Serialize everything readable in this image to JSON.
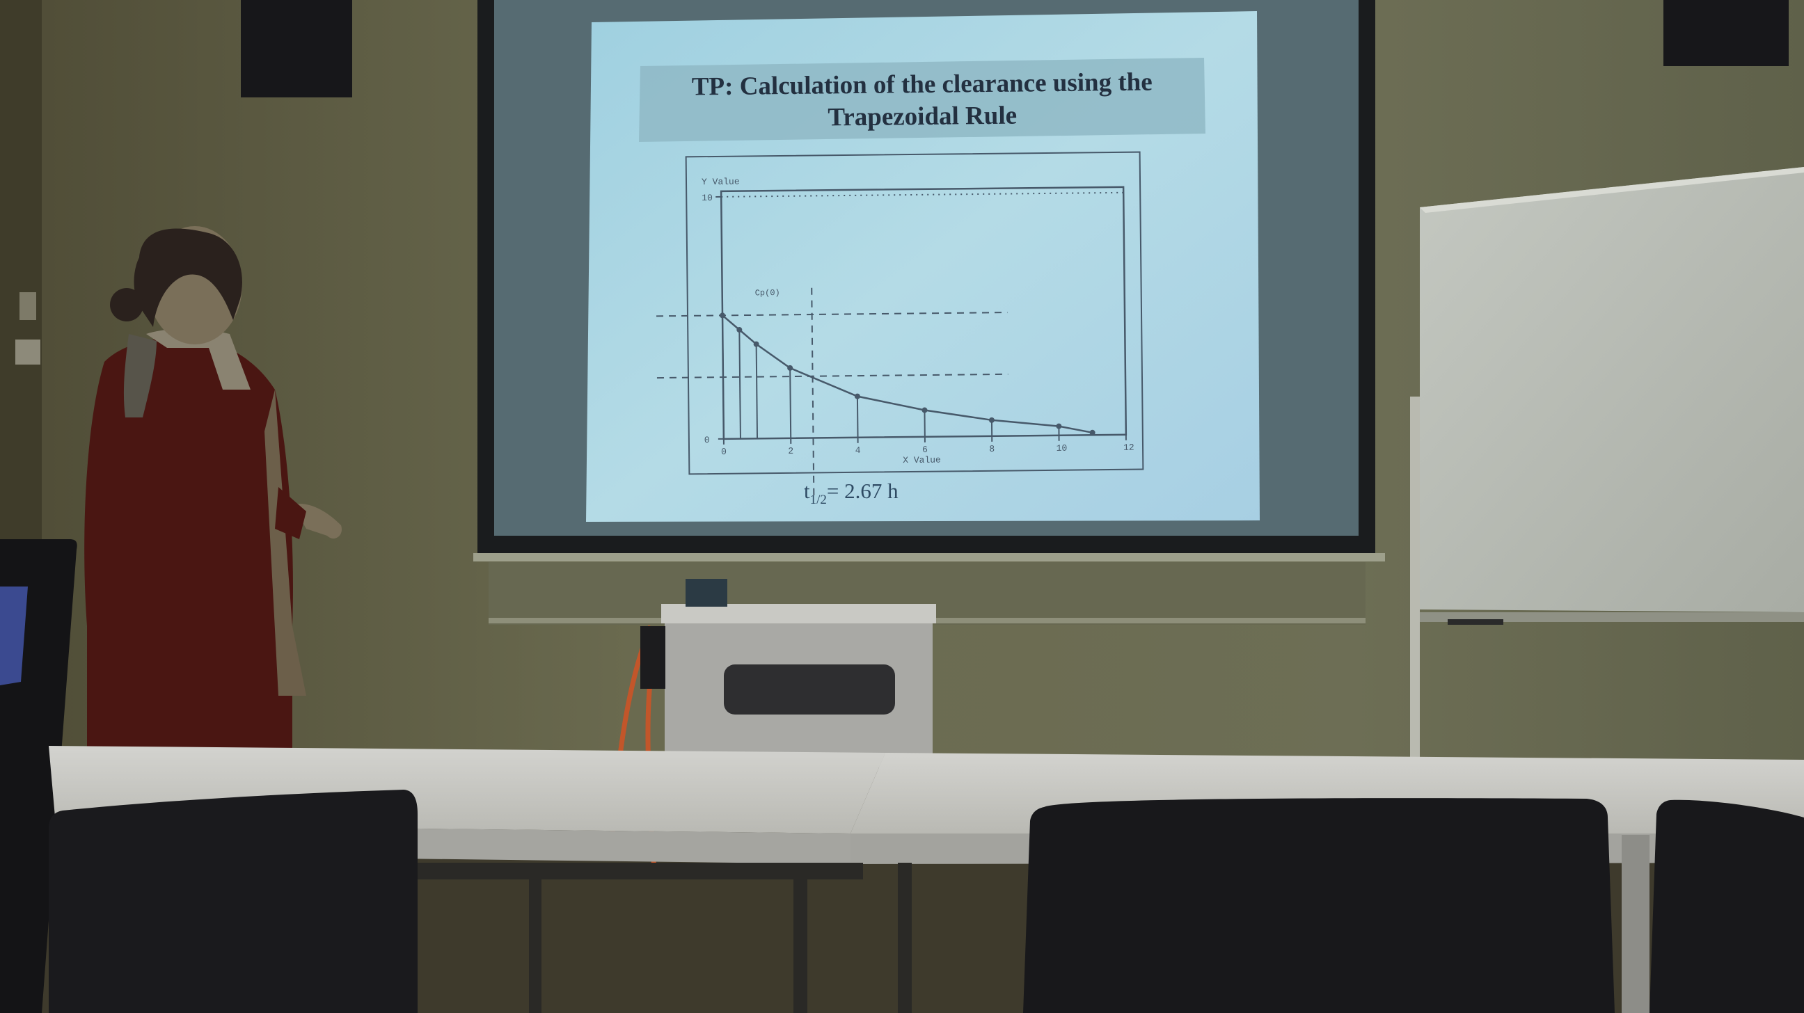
{
  "slide": {
    "title_line1": "TP: Calculation of the clearance using the",
    "title_line2": "Trapezoidal Rule",
    "halflife_t": "t",
    "halflife_sub": "1/2",
    "halflife_value": "= 2.67 h"
  },
  "chart_data": {
    "type": "line",
    "title": "",
    "xlabel": "X Value",
    "ylabel": "Y Value",
    "xlim": [
      0,
      12
    ],
    "ylim": [
      0,
      10
    ],
    "x_ticks": [
      "0",
      "2",
      "4",
      "6",
      "8",
      "10",
      "12"
    ],
    "y_ticks": [
      "0",
      "10"
    ],
    "annotation": "Cp(0)",
    "series": [
      {
        "x": [
          0,
          0.5,
          1,
          2,
          4,
          6,
          8,
          10,
          11
        ],
        "y": [
          5.1,
          4.5,
          3.9,
          2.9,
          1.7,
          1.1,
          0.66,
          0.38,
          0.1
        ]
      }
    ],
    "dashed_levels_y": [
      5.1,
      2.55
    ],
    "dashed_vertical_x": [
      2.67
    ]
  },
  "colors": {
    "wall": "#6b6a4f",
    "screen": "#a9d3df",
    "table": "#cfcfc9",
    "chair": "#1a1a1c",
    "presenter_coat": "#4a1612"
  }
}
